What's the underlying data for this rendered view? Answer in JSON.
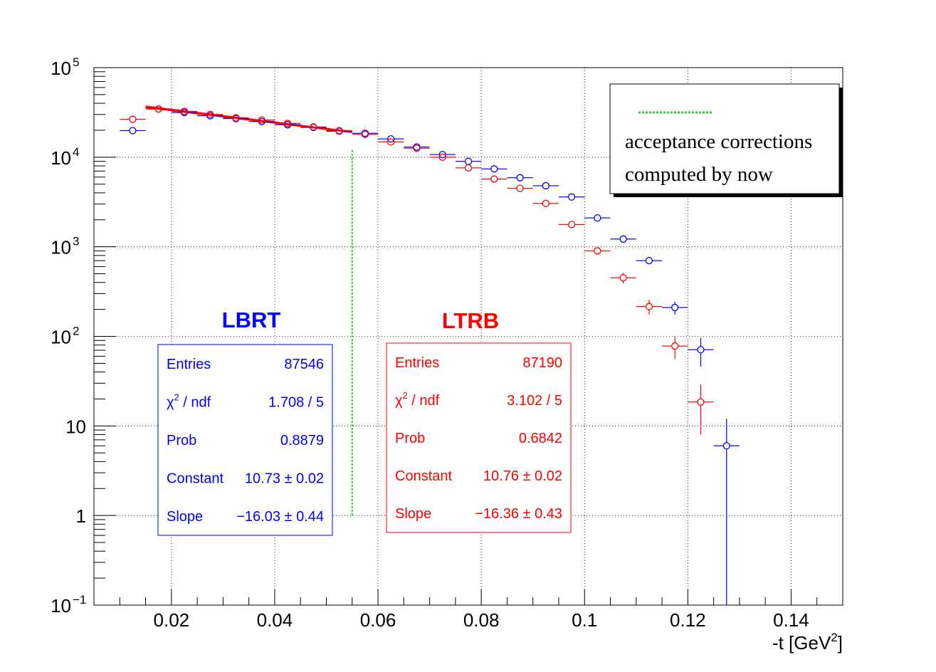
{
  "chart_data": {
    "type": "scatter",
    "xlabel": "-t [GeV",
    "xlabel_sup": "2",
    "xlabel_close": "]",
    "xlim": [
      0.005,
      0.15
    ],
    "ylim": [
      0.1,
      100000
    ],
    "y_scale": "log",
    "grid": true,
    "x_ticks": [
      {
        "value": 0.02,
        "label": "0.02"
      },
      {
        "value": 0.04,
        "label": "0.04"
      },
      {
        "value": 0.06,
        "label": "0.06"
      },
      {
        "value": 0.08,
        "label": "0.08"
      },
      {
        "value": 0.1,
        "label": "0.1"
      },
      {
        "value": 0.12,
        "label": "0.12"
      },
      {
        "value": 0.14,
        "label": "0.14"
      }
    ],
    "y_ticks": [
      {
        "value": 0.1,
        "base": "10",
        "exp": "−1"
      },
      {
        "value": 1,
        "base": "1",
        "exp": ""
      },
      {
        "value": 10,
        "base": "10",
        "exp": ""
      },
      {
        "value": 100,
        "base": "10",
        "exp": "2"
      },
      {
        "value": 1000,
        "base": "10",
        "exp": "3"
      },
      {
        "value": 10000,
        "base": "10",
        "exp": "4"
      },
      {
        "value": 100000,
        "base": "10",
        "exp": "5"
      }
    ],
    "series": [
      {
        "name": "LBRT",
        "color": "#0000ff",
        "x_half_width": 0.0025,
        "points": [
          {
            "x": 0.0125,
            "y": 19800,
            "err": 0
          },
          {
            "x": 0.0175,
            "y": 34500,
            "err": 0
          },
          {
            "x": 0.0225,
            "y": 31500,
            "err": 0
          },
          {
            "x": 0.0275,
            "y": 29000,
            "err": 0
          },
          {
            "x": 0.0325,
            "y": 27000,
            "err": 0
          },
          {
            "x": 0.0375,
            "y": 25000,
            "err": 0
          },
          {
            "x": 0.0425,
            "y": 23000,
            "err": 0
          },
          {
            "x": 0.0475,
            "y": 21500,
            "err": 0
          },
          {
            "x": 0.0525,
            "y": 19500,
            "err": 0
          },
          {
            "x": 0.0575,
            "y": 18500,
            "err": 0
          },
          {
            "x": 0.0625,
            "y": 16000,
            "err": 0
          },
          {
            "x": 0.0675,
            "y": 13000,
            "err": 0
          },
          {
            "x": 0.0725,
            "y": 10700,
            "err": 0
          },
          {
            "x": 0.0775,
            "y": 9000,
            "err": 0
          },
          {
            "x": 0.0825,
            "y": 7400,
            "err": 0
          },
          {
            "x": 0.0875,
            "y": 5900,
            "err": 0
          },
          {
            "x": 0.0925,
            "y": 4800,
            "err": 0
          },
          {
            "x": 0.0975,
            "y": 3600,
            "err": 0
          },
          {
            "x": 0.1025,
            "y": 2100,
            "err": 0
          },
          {
            "x": 0.1075,
            "y": 1220,
            "err": 0
          },
          {
            "x": 0.1125,
            "y": 700,
            "err": 0
          },
          {
            "x": 0.1175,
            "y": 210,
            "err": 35
          },
          {
            "x": 0.1225,
            "y": 71,
            "err": 25
          },
          {
            "x": 0.1275,
            "y": 6,
            "err": 5.99
          }
        ],
        "fit": {
          "constant": 10.73,
          "slope": -16.03,
          "xmin": 0.015,
          "xmax": 0.055
        },
        "stats_title": "LBRT",
        "stats": [
          {
            "label": "Entries",
            "value": "87546"
          },
          {
            "label": "χ",
            "label_sup": "2",
            "label_rest": " / ndf",
            "value": "1.708 / 5"
          },
          {
            "label": "Prob",
            "value": "0.8879"
          },
          {
            "label": "Constant",
            "value": "10.73 ± 0.02"
          },
          {
            "label": "Slope",
            "value": "−16.03 ± 0.44"
          }
        ]
      },
      {
        "name": "LTRB",
        "color": "#ff0000",
        "x_half_width": 0.0025,
        "points": [
          {
            "x": 0.0125,
            "y": 26500,
            "err": 0
          },
          {
            "x": 0.0175,
            "y": 34500,
            "err": 0
          },
          {
            "x": 0.0225,
            "y": 32500,
            "err": 0
          },
          {
            "x": 0.0275,
            "y": 30000,
            "err": 0
          },
          {
            "x": 0.0325,
            "y": 27500,
            "err": 0
          },
          {
            "x": 0.0375,
            "y": 26000,
            "err": 0
          },
          {
            "x": 0.0425,
            "y": 23800,
            "err": 0
          },
          {
            "x": 0.0475,
            "y": 21800,
            "err": 0
          },
          {
            "x": 0.0525,
            "y": 19800,
            "err": 0
          },
          {
            "x": 0.0575,
            "y": 18000,
            "err": 0
          },
          {
            "x": 0.0625,
            "y": 14800,
            "err": 0
          },
          {
            "x": 0.0675,
            "y": 12600,
            "err": 0
          },
          {
            "x": 0.0725,
            "y": 10000,
            "err": 0
          },
          {
            "x": 0.0775,
            "y": 7600,
            "err": 0
          },
          {
            "x": 0.0825,
            "y": 5700,
            "err": 0
          },
          {
            "x": 0.0875,
            "y": 4500,
            "err": 0
          },
          {
            "x": 0.0925,
            "y": 3050,
            "err": 0
          },
          {
            "x": 0.0975,
            "y": 1770,
            "err": 0
          },
          {
            "x": 0.1025,
            "y": 900,
            "err": 0
          },
          {
            "x": 0.1075,
            "y": 450,
            "err": 60
          },
          {
            "x": 0.1125,
            "y": 215,
            "err": 40
          },
          {
            "x": 0.1175,
            "y": 78,
            "err": 22
          },
          {
            "x": 0.1225,
            "y": 18.5,
            "err": 10.5
          }
        ],
        "fit": {
          "constant": 10.76,
          "slope": -16.36,
          "xmin": 0.015,
          "xmax": 0.055
        },
        "stats_title": "LTRB",
        "stats": [
          {
            "label": "Entries",
            "value": "87190"
          },
          {
            "label": "χ",
            "label_sup": "2",
            "label_rest": " / ndf",
            "value": "3.102 / 5"
          },
          {
            "label": "Prob",
            "value": "0.6842"
          },
          {
            "label": "Constant",
            "value": "10.76 ± 0.02"
          },
          {
            "label": "Slope",
            "value": "−16.36 ± 0.43"
          }
        ]
      }
    ],
    "marker_line": {
      "x": 0.055,
      "y_min": 1,
      "y_max": 12000,
      "color": "#33cc33"
    },
    "legend": {
      "placement": "top-right",
      "line_color": "#33cc33",
      "lines": [
        "acceptance corrections",
        "computed by now"
      ]
    }
  }
}
